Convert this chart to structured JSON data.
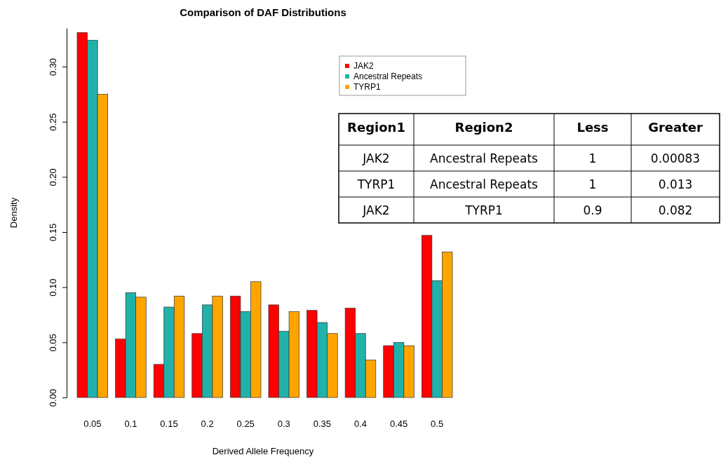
{
  "chart_data": {
    "type": "bar",
    "title": "Comparison of DAF Distributions",
    "xlabel": "Derived Allele Frequency",
    "ylabel": "Density",
    "categories": [
      "0.05",
      "0.1",
      "0.15",
      "0.2",
      "0.25",
      "0.3",
      "0.35",
      "0.4",
      "0.45",
      "0.5"
    ],
    "series": [
      {
        "name": "JAK2",
        "color": "#ff0000",
        "values": [
          0.331,
          0.053,
          0.03,
          0.058,
          0.092,
          0.084,
          0.079,
          0.081,
          0.047,
          0.147
        ]
      },
      {
        "name": "Ancestral Repeats",
        "color": "#20b2aa",
        "values": [
          0.324,
          0.095,
          0.082,
          0.084,
          0.078,
          0.06,
          0.068,
          0.058,
          0.05,
          0.106
        ]
      },
      {
        "name": "TYRP1",
        "color": "#ffa500",
        "values": [
          0.275,
          0.091,
          0.092,
          0.092,
          0.105,
          0.078,
          0.058,
          0.034,
          0.047,
          0.132
        ]
      }
    ],
    "ylim": [
      0,
      0.335
    ],
    "yticks": [
      {
        "value": 0,
        "label": "0.00"
      },
      {
        "value": 0.05,
        "label": "0.05"
      },
      {
        "value": 0.1,
        "label": "0.10"
      },
      {
        "value": 0.15,
        "label": "0.15"
      },
      {
        "value": 0.2,
        "label": "0.20"
      },
      {
        "value": 0.25,
        "label": "0.25"
      },
      {
        "value": 0.3,
        "label": "0.30"
      }
    ],
    "grid": false,
    "legend": "top right",
    "annotations": [
      "Region1",
      "Region2",
      "Less",
      "Greater",
      "JAK2",
      "Ancestral Repeats",
      "1",
      "0.00083",
      "TYRP1",
      "Ancestral Repeats",
      "1",
      "0.013",
      "JAK2",
      "TYRP1",
      "0.9",
      "0.082"
    ]
  }
}
